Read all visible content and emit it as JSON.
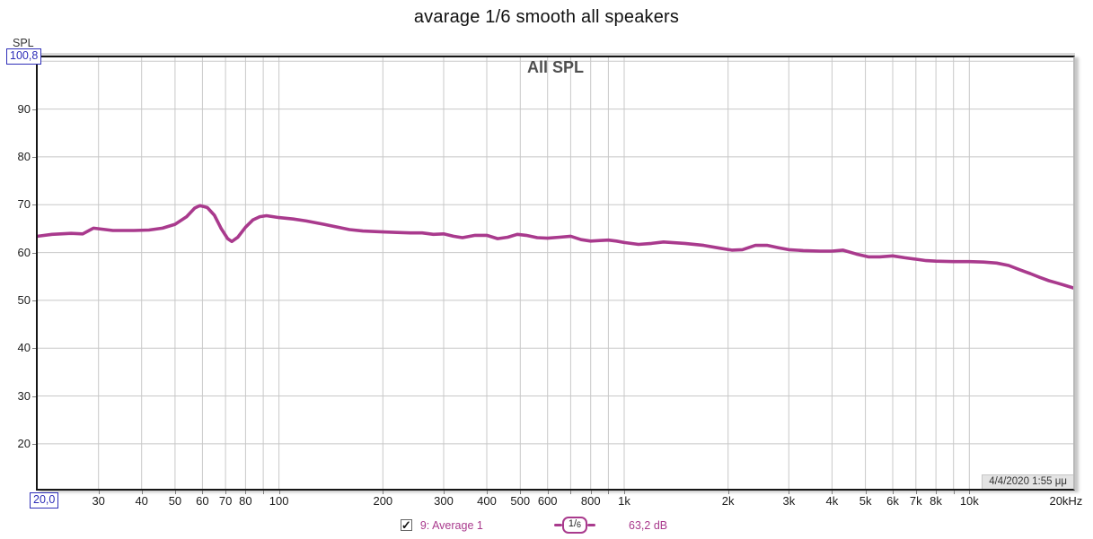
{
  "window": {
    "title": "avarage 1/6 smooth all speakers"
  },
  "chart": {
    "title": "All SPL",
    "timestamp": "4/4/2020 1:55 μμ"
  },
  "y_axis": {
    "name": "SPL",
    "max_box_value": "100,8"
  },
  "x_axis": {
    "min_box_value": "20,0",
    "end_label": "20kHz"
  },
  "legend": {
    "checked": true,
    "trace_label": "9: Average 1",
    "smoothing_numerator": "1/",
    "smoothing_denominator": "6",
    "cursor_value": "63,2 dB"
  },
  "colors": {
    "trace": "#A93A8D",
    "grid": "#C8C8C8",
    "axis_box_blue": "#2E2EB8",
    "chart_title_gray": "#4F4F4F"
  },
  "chart_data": {
    "type": "line",
    "title": "All SPL",
    "x_scale": "log",
    "x_range": [
      20,
      20000
    ],
    "x_unit": "Hz",
    "y_range": [
      10.6,
      100.8
    ],
    "y_unit": "dB SPL",
    "grid": true,
    "legend_position": "bottom",
    "y_tick_labels": [
      90,
      80,
      70,
      60,
      50,
      40,
      30,
      20
    ],
    "y_gridlines": [
      20,
      30,
      40,
      50,
      60,
      70,
      80,
      90,
      100
    ],
    "x_gridlines": [
      30,
      40,
      50,
      60,
      70,
      80,
      90,
      100,
      200,
      300,
      400,
      500,
      600,
      700,
      800,
      900,
      1000,
      2000,
      3000,
      4000,
      5000,
      6000,
      7000,
      8000,
      9000,
      10000
    ],
    "x_tick_labels": [
      {
        "f": 30,
        "label": "30"
      },
      {
        "f": 40,
        "label": "40"
      },
      {
        "f": 50,
        "label": "50"
      },
      {
        "f": 60,
        "label": "60"
      },
      {
        "f": 70,
        "label": "70"
      },
      {
        "f": 80,
        "label": "80"
      },
      {
        "f": 100,
        "label": "100"
      },
      {
        "f": 200,
        "label": "200"
      },
      {
        "f": 300,
        "label": "300"
      },
      {
        "f": 400,
        "label": "400"
      },
      {
        "f": 500,
        "label": "500"
      },
      {
        "f": 600,
        "label": "600"
      },
      {
        "f": 800,
        "label": "800"
      },
      {
        "f": 1000,
        "label": "1k"
      },
      {
        "f": 2000,
        "label": "2k"
      },
      {
        "f": 3000,
        "label": "3k"
      },
      {
        "f": 4000,
        "label": "4k"
      },
      {
        "f": 5000,
        "label": "5k"
      },
      {
        "f": 6000,
        "label": "6k"
      },
      {
        "f": 7000,
        "label": "7k"
      },
      {
        "f": 8000,
        "label": "8k"
      },
      {
        "f": 10000,
        "label": "10k"
      }
    ],
    "series": [
      {
        "name": "9: Average 1",
        "color": "#A93A8D",
        "smoothing": "1/6",
        "cursor_value_db": "63,2 dB",
        "points": [
          [
            20,
            63.4
          ],
          [
            22,
            63.8
          ],
          [
            25,
            64.0
          ],
          [
            27,
            63.9
          ],
          [
            29,
            65.1
          ],
          [
            33,
            64.6
          ],
          [
            38,
            64.6
          ],
          [
            42,
            64.7
          ],
          [
            46,
            65.1
          ],
          [
            50,
            65.9
          ],
          [
            54,
            67.5
          ],
          [
            57,
            69.3
          ],
          [
            59,
            69.8
          ],
          [
            62,
            69.4
          ],
          [
            65,
            67.8
          ],
          [
            68,
            65.0
          ],
          [
            71,
            62.9
          ],
          [
            73,
            62.3
          ],
          [
            76,
            63.2
          ],
          [
            80,
            65.3
          ],
          [
            84,
            66.8
          ],
          [
            88,
            67.5
          ],
          [
            92,
            67.7
          ],
          [
            100,
            67.3
          ],
          [
            110,
            67.0
          ],
          [
            120,
            66.6
          ],
          [
            135,
            65.9
          ],
          [
            150,
            65.2
          ],
          [
            160,
            64.8
          ],
          [
            175,
            64.5
          ],
          [
            200,
            64.3
          ],
          [
            220,
            64.2
          ],
          [
            240,
            64.1
          ],
          [
            260,
            64.1
          ],
          [
            280,
            63.8
          ],
          [
            300,
            63.9
          ],
          [
            320,
            63.4
          ],
          [
            340,
            63.1
          ],
          [
            370,
            63.6
          ],
          [
            400,
            63.6
          ],
          [
            430,
            62.9
          ],
          [
            460,
            63.2
          ],
          [
            490,
            63.8
          ],
          [
            520,
            63.6
          ],
          [
            560,
            63.1
          ],
          [
            600,
            63.0
          ],
          [
            650,
            63.2
          ],
          [
            700,
            63.4
          ],
          [
            750,
            62.7
          ],
          [
            800,
            62.4
          ],
          [
            850,
            62.5
          ],
          [
            900,
            62.6
          ],
          [
            950,
            62.4
          ],
          [
            1000,
            62.1
          ],
          [
            1100,
            61.7
          ],
          [
            1200,
            61.9
          ],
          [
            1300,
            62.2
          ],
          [
            1500,
            61.9
          ],
          [
            1700,
            61.5
          ],
          [
            1900,
            60.9
          ],
          [
            2050,
            60.5
          ],
          [
            2200,
            60.6
          ],
          [
            2400,
            61.5
          ],
          [
            2600,
            61.5
          ],
          [
            2800,
            61.0
          ],
          [
            3000,
            60.6
          ],
          [
            3300,
            60.4
          ],
          [
            3700,
            60.3
          ],
          [
            4000,
            60.3
          ],
          [
            4300,
            60.5
          ],
          [
            4700,
            59.7
          ],
          [
            5100,
            59.1
          ],
          [
            5500,
            59.1
          ],
          [
            6000,
            59.3
          ],
          [
            6500,
            58.9
          ],
          [
            7000,
            58.6
          ],
          [
            7500,
            58.3
          ],
          [
            8000,
            58.2
          ],
          [
            9000,
            58.1
          ],
          [
            10000,
            58.1
          ],
          [
            11000,
            58.0
          ],
          [
            12000,
            57.8
          ],
          [
            13000,
            57.3
          ],
          [
            14000,
            56.4
          ],
          [
            15000,
            55.6
          ],
          [
            16000,
            54.8
          ],
          [
            17000,
            54.1
          ],
          [
            18000,
            53.6
          ],
          [
            19000,
            53.1
          ],
          [
            20000,
            52.6
          ]
        ]
      }
    ]
  }
}
